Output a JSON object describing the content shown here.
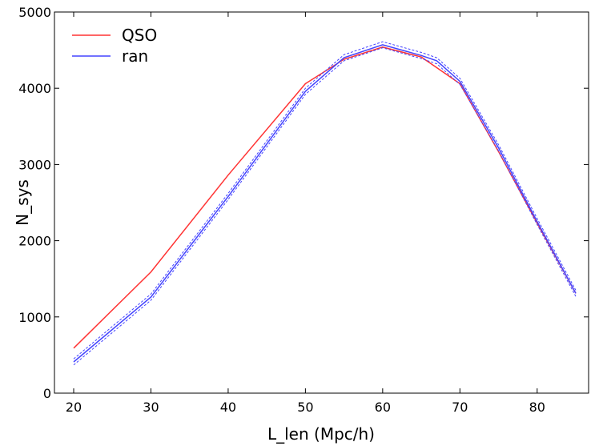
{
  "chart_data": {
    "type": "line",
    "xlabel": "L_len (Mpc/h)",
    "ylabel": "N_sys",
    "xlim": [
      20,
      85
    ],
    "ylim": [
      0,
      5000
    ],
    "xticks": [
      20,
      30,
      40,
      50,
      60,
      70,
      80
    ],
    "yticks": [
      0,
      1000,
      2000,
      3000,
      4000,
      5000
    ],
    "legend_position": "top-left",
    "series": [
      {
        "name": "QSO",
        "color": "#ff3333",
        "x": [
          20,
          30,
          40,
          50,
          55,
          60,
          65,
          67,
          70,
          75,
          80,
          85
        ],
        "y": [
          590,
          1590,
          2860,
          4060,
          4380,
          4540,
          4410,
          4270,
          4060,
          3170,
          2230,
          1310
        ]
      },
      {
        "name": "ran",
        "color": "#4444ff",
        "x": [
          20,
          30,
          40,
          50,
          55,
          60,
          65,
          67,
          70,
          75,
          80,
          85
        ],
        "y": [
          410,
          1260,
          2580,
          3960,
          4400,
          4570,
          4430,
          4360,
          4090,
          3220,
          2250,
          1310
        ],
        "error_band": 40
      }
    ]
  }
}
